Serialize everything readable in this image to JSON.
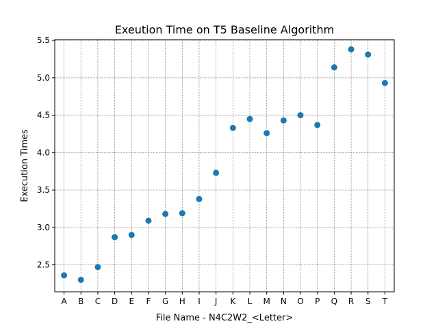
{
  "chart_data": {
    "type": "scatter",
    "title": "Exeution Time on T5 Baseline Algorithm",
    "xlabel": "File Name - N4C2W2_<Letter>",
    "ylabel": "Execution Times",
    "categories": [
      "A",
      "B",
      "C",
      "D",
      "E",
      "F",
      "G",
      "H",
      "I",
      "J",
      "K",
      "L",
      "M",
      "N",
      "O",
      "P",
      "Q",
      "R",
      "S",
      "T"
    ],
    "values": [
      2.36,
      2.3,
      2.47,
      2.87,
      2.9,
      3.09,
      3.18,
      3.19,
      3.38,
      3.73,
      4.33,
      4.45,
      4.26,
      4.43,
      4.5,
      4.37,
      5.14,
      5.38,
      5.31,
      4.93
    ],
    "ylim": [
      2.14,
      5.51
    ],
    "yticks": [
      2.5,
      3.0,
      3.5,
      4.0,
      4.5,
      5.0,
      5.5
    ],
    "grid": true,
    "marker_color": "#1f77b4"
  }
}
